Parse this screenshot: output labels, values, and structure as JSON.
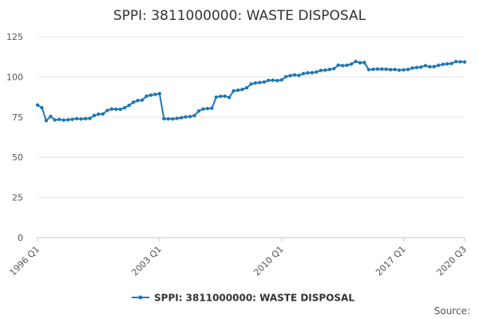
{
  "chart_data": {
    "type": "line",
    "title": "SPPI: 3811000000: WASTE DISPOSAL",
    "xlabel": "",
    "ylabel": "",
    "ylim": [
      0,
      125
    ],
    "y_ticks": [
      0,
      25,
      50,
      75,
      100,
      125
    ],
    "x_tick_labels": [
      "1996 Q1",
      "2003 Q1",
      "2010 Q1",
      "2017 Q1",
      "2020 Q3"
    ],
    "grid": true,
    "legend": "bottom",
    "series_color": "#1f78b4",
    "series": [
      {
        "name": "SPPI: 3811000000: WASTE DISPOSAL",
        "values": [
          82.5,
          80.8,
          72.8,
          75.4,
          73.2,
          73.5,
          73.1,
          73.3,
          73.6,
          74.0,
          73.8,
          74.0,
          74.2,
          76.0,
          76.8,
          76.9,
          79.1,
          80.0,
          79.9,
          79.8,
          80.8,
          82.3,
          84.2,
          85.3,
          85.5,
          88.0,
          88.6,
          89.1,
          89.6,
          74.0,
          73.9,
          73.8,
          74.2,
          74.6,
          75.1,
          75.3,
          75.9,
          78.8,
          80.0,
          80.3,
          80.5,
          87.4,
          87.9,
          88.0,
          87.2,
          91.3,
          91.7,
          92.2,
          93.2,
          95.5,
          96.2,
          96.5,
          96.8,
          97.8,
          97.9,
          97.7,
          98.1,
          100.1,
          100.8,
          101.2,
          100.9,
          102.0,
          102.5,
          102.6,
          103.0,
          104.0,
          104.2,
          104.6,
          105.1,
          107.3,
          107.0,
          107.2,
          108.0,
          109.6,
          108.8,
          108.9,
          104.5,
          104.7,
          104.9,
          104.8,
          104.8,
          104.5,
          104.6,
          104.2,
          104.4,
          104.6,
          105.5,
          105.8,
          106.1,
          107.0,
          106.3,
          106.4,
          107.2,
          107.8,
          108.1,
          108.3,
          109.5,
          109.4,
          109.3
        ]
      }
    ]
  },
  "footer": {
    "source_label": "Source:"
  }
}
